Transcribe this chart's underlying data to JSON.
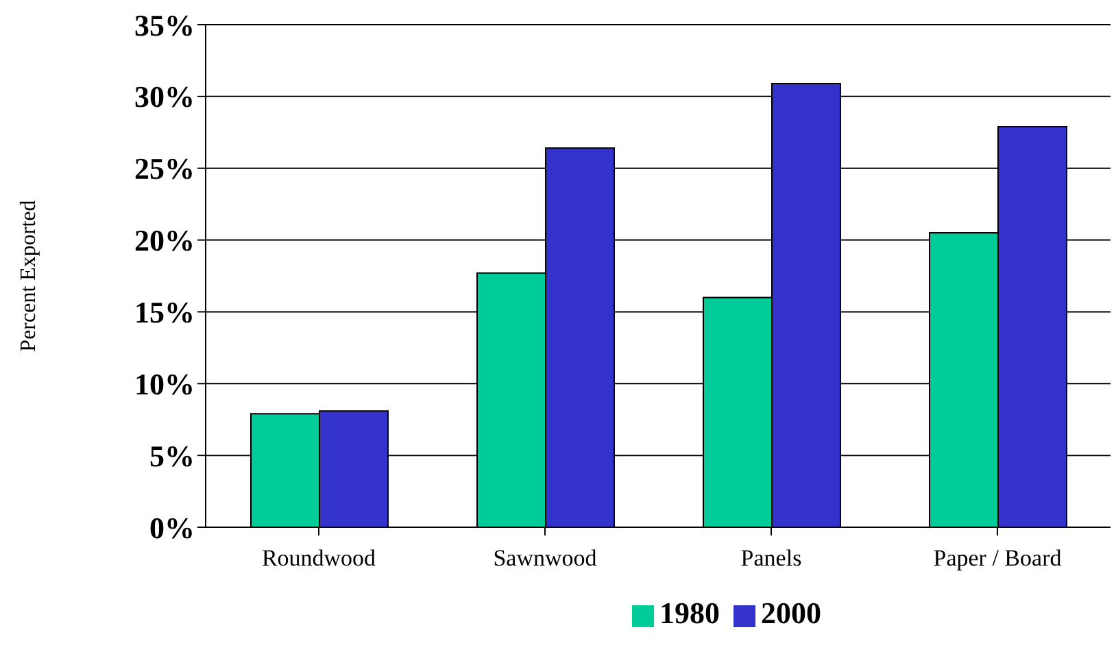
{
  "chart_data": {
    "type": "bar",
    "ylabel": "Percent Exported",
    "categories": [
      "Roundwood",
      "Sawnwood",
      "Panels",
      "Paper / Board"
    ],
    "series": [
      {
        "name": "1980",
        "color": "#00cc99",
        "values": [
          7.9,
          17.7,
          16.0,
          20.5
        ]
      },
      {
        "name": "2000",
        "color": "#3333cc",
        "values": [
          8.1,
          26.4,
          30.9,
          27.9
        ]
      }
    ],
    "ylim": [
      0,
      35
    ],
    "yticks": [
      {
        "value": 0,
        "label": "0%"
      },
      {
        "value": 5,
        "label": "5%"
      },
      {
        "value": 10,
        "label": "10%"
      },
      {
        "value": 15,
        "label": "15%"
      },
      {
        "value": 20,
        "label": "20%"
      },
      {
        "value": 25,
        "label": "25%"
      },
      {
        "value": 30,
        "label": "30%"
      },
      {
        "value": 35,
        "label": "35%"
      }
    ],
    "grid": "y",
    "legend": "bottom"
  }
}
